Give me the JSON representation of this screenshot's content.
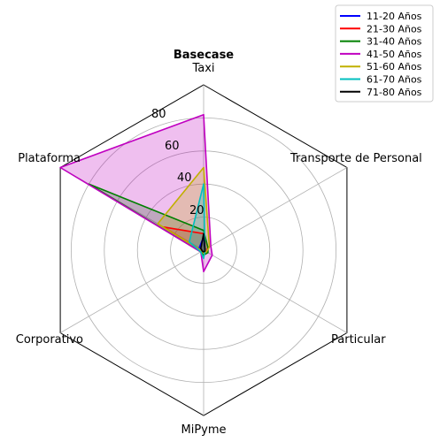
{
  "chart_data": {
    "type": "radar",
    "title": "Basecase",
    "axes": [
      "Taxi",
      "Transporte de Personal",
      "Particular",
      "MiPyme",
      "Corporativo",
      "Plataforma"
    ],
    "rlim": [
      0,
      100
    ],
    "rticks": [
      20,
      40,
      60,
      80
    ],
    "grid": true,
    "legend_position": "top-right",
    "series": [
      {
        "name": "11-20 Años",
        "color": "#0000ff",
        "values": [
          8,
          1,
          1,
          1,
          1,
          3
        ]
      },
      {
        "name": "21-30 Años",
        "color": "#ff0000",
        "values": [
          10,
          3,
          2,
          2,
          1,
          28
        ]
      },
      {
        "name": "31-40 Años",
        "color": "#008000",
        "values": [
          12,
          3,
          3,
          3,
          2,
          80
        ]
      },
      {
        "name": "41-50 Años",
        "color": "#c000c0",
        "values": [
          82,
          5,
          6,
          13,
          2,
          100
        ]
      },
      {
        "name": "51-60 Años",
        "color": "#c0b000",
        "values": [
          50,
          4,
          2,
          2,
          1,
          32
        ]
      },
      {
        "name": "61-70 Años",
        "color": "#00bfbf",
        "values": [
          40,
          1,
          1,
          5,
          2,
          10
        ]
      },
      {
        "name": "71-80 Años",
        "color": "#000000",
        "values": [
          10,
          1,
          1,
          1,
          1,
          2
        ]
      }
    ]
  }
}
